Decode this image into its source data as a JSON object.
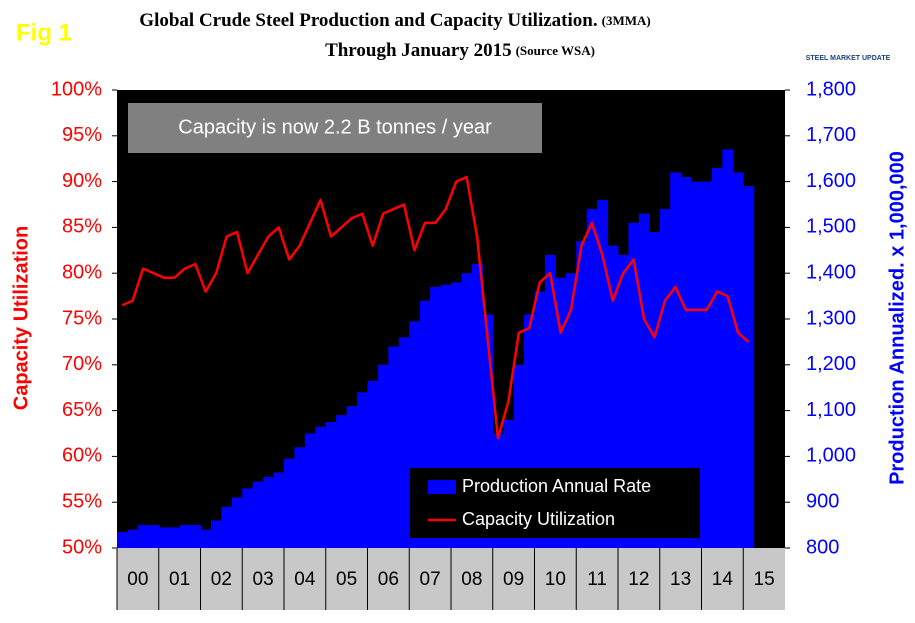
{
  "chart_data": {
    "type": "bar_line",
    "label": "Fig 1",
    "title": "Global Crude Steel Production and Capacity Utilization.",
    "title_note": "(3MMA)",
    "subtitle": "Through January 2015",
    "subtitle_note": "(Source WSA)",
    "logo": "STEEL MARKET UPDATE",
    "annotation": "Capacity is now 2.2 B tonnes / year",
    "ylabel": "Capacity Utilization",
    "y2label": "Production Annualized. x 1,000,000",
    "categories": [
      "00",
      "01",
      "02",
      "03",
      "04",
      "05",
      "06",
      "07",
      "08",
      "09",
      "10",
      "11",
      "12",
      "13",
      "14",
      "15"
    ],
    "xlim": [
      0,
      16
    ],
    "x": [
      0,
      0.25,
      0.5,
      0.75,
      1,
      1.25,
      1.5,
      1.75,
      2,
      2.25,
      2.5,
      2.75,
      3,
      3.25,
      3.5,
      3.75,
      4,
      4.25,
      4.5,
      4.75,
      5,
      5.25,
      5.5,
      5.75,
      6,
      6.25,
      6.5,
      6.75,
      7,
      7.25,
      7.5,
      7.75,
      8,
      8.25,
      8.5,
      8.75,
      9,
      9.25,
      9.5,
      9.75,
      10,
      10.25,
      10.5,
      10.75,
      11,
      11.25,
      11.5,
      11.75,
      12,
      12.25,
      12.5,
      12.75,
      13,
      13.25,
      13.5,
      13.75,
      14,
      14.25,
      14.5,
      14.75,
      15
    ],
    "ylim": [
      50,
      100
    ],
    "yticks": [
      {
        "value": 50,
        "label": "50%"
      },
      {
        "value": 55,
        "label": "55%"
      },
      {
        "value": 60,
        "label": "60%"
      },
      {
        "value": 65,
        "label": "65%"
      },
      {
        "value": 70,
        "label": "70%"
      },
      {
        "value": 75,
        "label": "75%"
      },
      {
        "value": 80,
        "label": "80%"
      },
      {
        "value": 85,
        "label": "85%"
      },
      {
        "value": 90,
        "label": "90%"
      },
      {
        "value": 95,
        "label": "95%"
      },
      {
        "value": 100,
        "label": "100%"
      }
    ],
    "y2lim": [
      800,
      1800
    ],
    "y2ticks": [
      800,
      900,
      {
        "value": 1000,
        "label": "1,000"
      },
      {
        "value": 1100,
        "label": "1,100"
      },
      {
        "value": 1200,
        "label": "1,200"
      },
      {
        "value": 1300,
        "label": "1,300"
      },
      {
        "value": 1400,
        "label": "1,400"
      },
      {
        "value": 1500,
        "label": "1,500"
      },
      {
        "value": 1600,
        "label": "1,600"
      },
      {
        "value": 1700,
        "label": "1,700"
      },
      {
        "value": 1800,
        "label": "1,800"
      }
    ],
    "series": [
      {
        "name": "Production Annual Rate",
        "color": "#0000ff",
        "axis": "y2",
        "kind": "bar",
        "values": [
          835,
          840,
          850,
          850,
          845,
          845,
          850,
          850,
          840,
          860,
          890,
          910,
          930,
          945,
          955,
          965,
          995,
          1020,
          1050,
          1065,
          1075,
          1090,
          1110,
          1140,
          1165,
          1200,
          1240,
          1260,
          1295,
          1340,
          1370,
          1375,
          1380,
          1400,
          1420,
          1310,
          1050,
          1080,
          1200,
          1310,
          1360,
          1440,
          1390,
          1400,
          1470,
          1540,
          1560,
          1460,
          1440,
          1510,
          1530,
          1490,
          1540,
          1620,
          1610,
          1600,
          1600,
          1630,
          1670,
          1620,
          1590
        ]
      },
      {
        "name": "Capacity Utilization",
        "color": "#ff0000",
        "axis": "y",
        "kind": "line",
        "values": [
          76.5,
          77,
          80.5,
          80,
          79.5,
          79.5,
          80.5,
          81,
          78,
          80,
          84,
          84.5,
          80,
          82,
          84,
          85,
          81.5,
          83,
          85.5,
          88,
          84,
          85,
          86,
          86.5,
          83,
          86.5,
          87,
          87.5,
          82.5,
          85.5,
          85.5,
          87,
          90,
          90.5,
          84,
          73,
          62,
          66,
          73.5,
          74,
          79,
          80,
          73.5,
          76,
          83,
          85.5,
          82,
          77,
          80,
          81.5,
          75,
          73,
          77,
          78.5,
          76,
          76,
          76,
          78,
          77.5,
          73.5,
          72.5
        ]
      }
    ]
  }
}
